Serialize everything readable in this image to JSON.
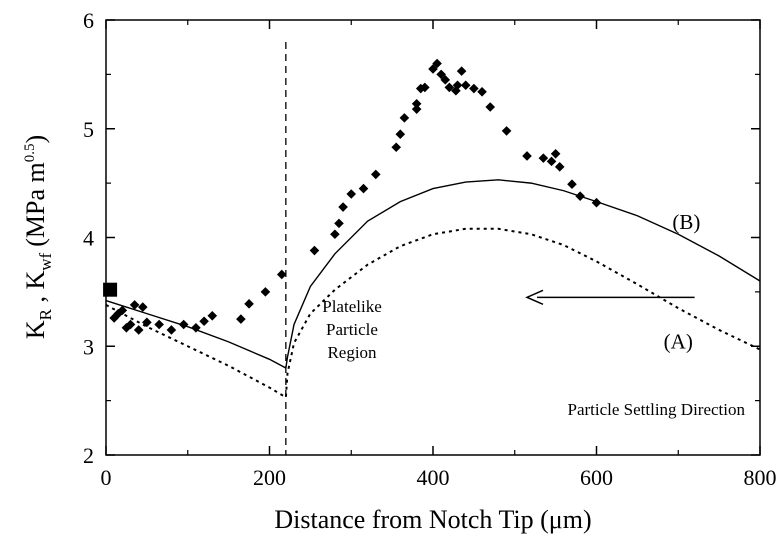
{
  "chart_data": {
    "type": "scatter",
    "xlabel": "Distance from Notch Tip (μm)",
    "ylabel_parts": {
      "k": "K",
      "sub_r": "R",
      "sep": " , ",
      "sub_wf": "wf",
      "unit": "(MPa m",
      "exp": "0.5",
      "close": ")"
    },
    "xlim": [
      0,
      800
    ],
    "ylim": [
      2,
      6
    ],
    "x_ticks": [
      0,
      200,
      400,
      600,
      800
    ],
    "y_ticks": [
      2,
      3,
      4,
      5,
      6
    ],
    "grid": false,
    "vline_x": 220,
    "series": [
      {
        "name": "",
        "kind": "points-diamond",
        "color": "#000000",
        "points": [
          [
            10,
            3.26
          ],
          [
            15,
            3.3
          ],
          [
            20,
            3.33
          ],
          [
            25,
            3.17
          ],
          [
            30,
            3.2
          ],
          [
            35,
            3.38
          ],
          [
            40,
            3.15
          ],
          [
            45,
            3.36
          ],
          [
            50,
            3.22
          ],
          [
            65,
            3.2
          ],
          [
            80,
            3.15
          ],
          [
            95,
            3.2
          ],
          [
            110,
            3.17
          ],
          [
            120,
            3.23
          ],
          [
            130,
            3.28
          ],
          [
            165,
            3.25
          ],
          [
            175,
            3.39
          ],
          [
            195,
            3.5
          ],
          [
            215,
            3.66
          ],
          [
            255,
            3.88
          ],
          [
            280,
            4.03
          ],
          [
            285,
            4.13
          ],
          [
            290,
            4.28
          ],
          [
            300,
            4.4
          ],
          [
            315,
            4.45
          ],
          [
            330,
            4.58
          ],
          [
            355,
            4.83
          ],
          [
            360,
            4.95
          ],
          [
            365,
            5.1
          ],
          [
            380,
            5.18
          ],
          [
            380,
            5.23
          ],
          [
            385,
            5.37
          ],
          [
            390,
            5.38
          ],
          [
            400,
            5.55
          ],
          [
            405,
            5.6
          ],
          [
            410,
            5.5
          ],
          [
            415,
            5.45
          ],
          [
            420,
            5.38
          ],
          [
            428,
            5.35
          ],
          [
            430,
            5.4
          ],
          [
            435,
            5.53
          ],
          [
            440,
            5.4
          ],
          [
            450,
            5.37
          ],
          [
            460,
            5.34
          ],
          [
            470,
            5.2
          ],
          [
            490,
            4.98
          ],
          [
            515,
            4.75
          ],
          [
            535,
            4.73
          ],
          [
            545,
            4.7
          ],
          [
            550,
            4.77
          ],
          [
            555,
            4.65
          ],
          [
            570,
            4.49
          ],
          [
            580,
            4.38
          ],
          [
            600,
            4.32
          ]
        ]
      },
      {
        "name": "",
        "kind": "points-square",
        "color": "#000000",
        "points": [
          [
            5,
            3.52
          ]
        ]
      },
      {
        "name": "(B)",
        "kind": "line-solid",
        "color": "#000000",
        "points": [
          [
            0,
            3.42
          ],
          [
            50,
            3.3
          ],
          [
            100,
            3.18
          ],
          [
            150,
            3.04
          ],
          [
            200,
            2.88
          ],
          [
            220,
            2.8
          ],
          [
            222,
            2.9
          ],
          [
            230,
            3.2
          ],
          [
            250,
            3.55
          ],
          [
            280,
            3.85
          ],
          [
            320,
            4.15
          ],
          [
            360,
            4.33
          ],
          [
            400,
            4.45
          ],
          [
            440,
            4.51
          ],
          [
            480,
            4.53
          ],
          [
            520,
            4.5
          ],
          [
            560,
            4.43
          ],
          [
            600,
            4.33
          ],
          [
            650,
            4.2
          ],
          [
            700,
            4.03
          ],
          [
            750,
            3.83
          ],
          [
            800,
            3.6
          ]
        ]
      },
      {
        "name": "(A)",
        "kind": "line-dotted",
        "color": "#000000",
        "points": [
          [
            0,
            3.38
          ],
          [
            50,
            3.18
          ],
          [
            100,
            3.0
          ],
          [
            150,
            2.82
          ],
          [
            200,
            2.62
          ],
          [
            220,
            2.53
          ],
          [
            222,
            2.75
          ],
          [
            230,
            3.03
          ],
          [
            250,
            3.3
          ],
          [
            280,
            3.52
          ],
          [
            320,
            3.75
          ],
          [
            360,
            3.92
          ],
          [
            400,
            4.03
          ],
          [
            440,
            4.08
          ],
          [
            480,
            4.08
          ],
          [
            520,
            4.03
          ],
          [
            560,
            3.93
          ],
          [
            600,
            3.78
          ],
          [
            650,
            3.57
          ],
          [
            700,
            3.35
          ],
          [
            750,
            3.15
          ],
          [
            800,
            2.97
          ]
        ]
      }
    ],
    "annotations": {
      "region_line1": "Platelike",
      "region_line2": "Particle",
      "region_line3": "Region",
      "direction_label": "Particle Settling Direction",
      "arrow_from_x": 720,
      "arrow_to_x": 515,
      "arrow_y": 3.45
    }
  }
}
